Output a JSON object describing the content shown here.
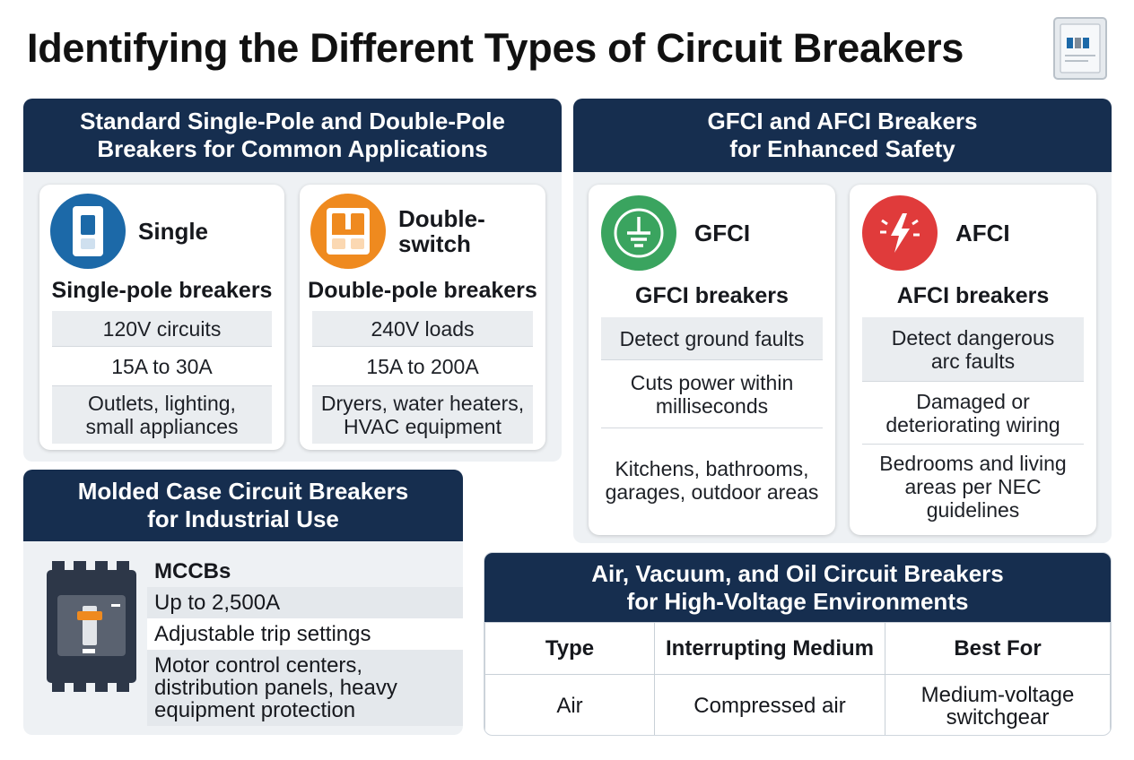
{
  "title": "Identifying the Different Types of Circuit Breakers",
  "header_icon": "breaker-panel-icon",
  "colors": {
    "header_bg": "#162e4f",
    "single_blue": "#1c69a8",
    "double_orange": "#ef8a1f",
    "gfci_green": "#3aa45f",
    "afci_red": "#e03b3b"
  },
  "standard": {
    "header_line1": "Standard Single-Pole and Double-Pole",
    "header_line2": "Breakers for Common Applications",
    "single": {
      "label": "Single",
      "icon": "single-switch-icon",
      "subtitle": "Single-pole breakers",
      "rows": [
        "120V circuits",
        "15A to 30A",
        "Outlets, lighting,",
        "small appliances"
      ]
    },
    "double": {
      "label_line1": "Double-",
      "label_line2": "switch",
      "icon": "double-switch-icon",
      "subtitle": "Double-pole breakers",
      "rows": [
        "240V loads",
        "15A to 200A",
        "Dryers, water heaters,",
        "HVAC equipment"
      ]
    }
  },
  "safety": {
    "header_line1": "GFCI and AFCI Breakers",
    "header_line2": "for Enhanced Safety",
    "gfci": {
      "label": "GFCI",
      "icon": "ground-icon",
      "subtitle": "GFCI breakers",
      "rows": [
        "Detect ground faults",
        "Cuts power within",
        "milliseconds",
        "Kitchens, bathrooms,",
        "garages, outdoor areas"
      ]
    },
    "afci": {
      "label": "AFCI",
      "icon": "arc-fault-icon",
      "subtitle": "AFCI breakers",
      "rows": [
        "Detect dangerous",
        "arc faults",
        "Damaged or",
        "deteriorating wiring",
        "Bedrooms and living",
        "areas per NEC",
        "guidelines"
      ]
    }
  },
  "mccb": {
    "header_line1": "Molded Case Circuit Breakers",
    "header_line2": "for Industrial Use",
    "image": "mccb-breaker-image",
    "items": [
      "MCCBs",
      "Up to 2,500A",
      "Adjustable trip settings",
      "Motor control centers,",
      "distribution panels, heavy",
      "equipment protection"
    ]
  },
  "high_voltage": {
    "header_line1": "Air, Vacuum, and Oil Circuit Breakers",
    "header_line2": "for High-Voltage Environments",
    "columns": [
      "Type",
      "Interrupting Medium",
      "Best For"
    ],
    "rows": [
      {
        "type": "Air",
        "medium": "Compressed air",
        "best_for_line1": "Medium-voltage",
        "best_for_line2": "switchgear"
      }
    ]
  }
}
